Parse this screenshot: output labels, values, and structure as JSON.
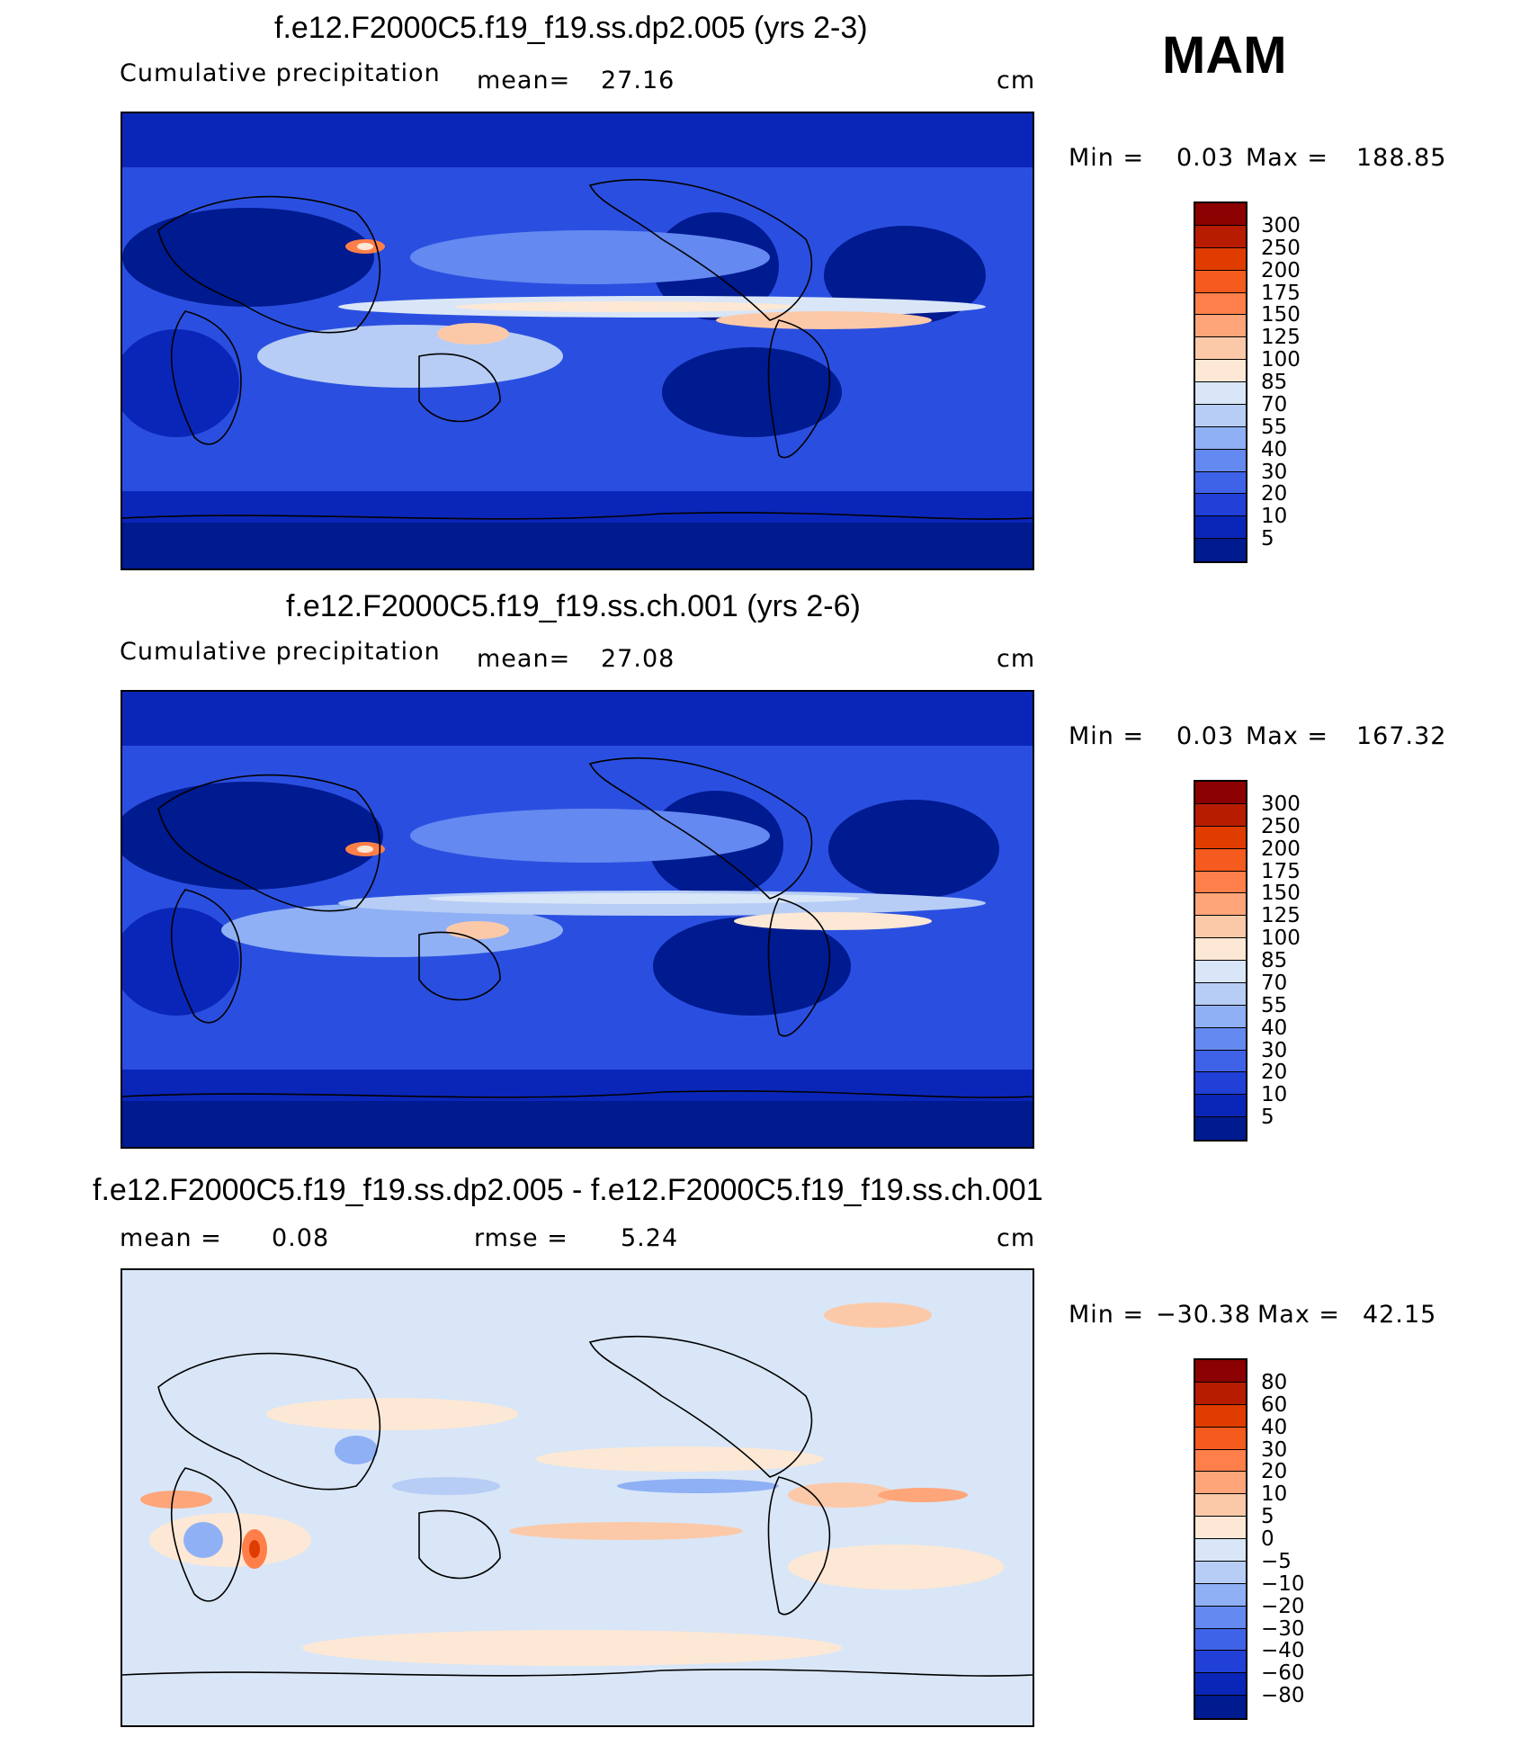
{
  "season": "MAM",
  "panels": [
    {
      "title": "f.e12.F2000C5.f19_f19.ss.dp2.005 (yrs 2-3)",
      "left_label": "Cumulative precipitation",
      "stat_label": "mean=",
      "stat_value": "27.16",
      "units": "cm",
      "min_label": "Min =",
      "min_value": "0.03",
      "max_label": "Max =",
      "max_value": "188.85",
      "colorbar_ticks": [
        "300",
        "250",
        "200",
        "175",
        "150",
        "125",
        "100",
        "85",
        "70",
        "55",
        "40",
        "30",
        "20",
        "10",
        "5"
      ],
      "colorbar_colors": [
        "#8b0000",
        "#b71c00",
        "#e03c00",
        "#f55a1e",
        "#ff7f4a",
        "#ffa57a",
        "#fcc9a8",
        "#fde8d5",
        "#d9e6f7",
        "#b7cdf5",
        "#8fb0f5",
        "#6489f0",
        "#3f63e8",
        "#2040d8",
        "#0a26b8",
        "#001a90"
      ]
    },
    {
      "title": "f.e12.F2000C5.f19_f19.ss.ch.001 (yrs 2-6)",
      "left_label": "Cumulative precipitation",
      "stat_label": "mean=",
      "stat_value": "27.08",
      "units": "cm",
      "min_label": "Min =",
      "min_value": "0.03",
      "max_label": "Max =",
      "max_value": "167.32",
      "colorbar_ticks": [
        "300",
        "250",
        "200",
        "175",
        "150",
        "125",
        "100",
        "85",
        "70",
        "55",
        "40",
        "30",
        "20",
        "10",
        "5"
      ],
      "colorbar_colors": [
        "#8b0000",
        "#b71c00",
        "#e03c00",
        "#f55a1e",
        "#ff7f4a",
        "#ffa57a",
        "#fcc9a8",
        "#fde8d5",
        "#d9e6f7",
        "#b7cdf5",
        "#8fb0f5",
        "#6489f0",
        "#3f63e8",
        "#2040d8",
        "#0a26b8",
        "#001a90"
      ]
    },
    {
      "title": "f.e12.F2000C5.f19_f19.ss.dp2.005 - f.e12.F2000C5.f19_f19.ss.ch.001",
      "left_label": "mean =",
      "left_value": "0.08",
      "stat_label": "rmse =",
      "stat_value": "5.24",
      "units": "cm",
      "min_label": "Min =",
      "min_value": "−30.38",
      "max_label": "Max =",
      "max_value": "42.15",
      "colorbar_ticks": [
        "80",
        "60",
        "40",
        "30",
        "20",
        "10",
        "5",
        "0",
        "−5",
        "−10",
        "−20",
        "−30",
        "−40",
        "−60",
        "−80"
      ],
      "colorbar_colors": [
        "#8b0000",
        "#b71c00",
        "#e03c00",
        "#f55a1e",
        "#ff7f4a",
        "#ffa57a",
        "#fcc9a8",
        "#fde8d5",
        "#d9e6f7",
        "#b7cdf5",
        "#8fb0f5",
        "#6489f0",
        "#3f63e8",
        "#2040d8",
        "#0a26b8",
        "#001a90"
      ]
    }
  ]
}
